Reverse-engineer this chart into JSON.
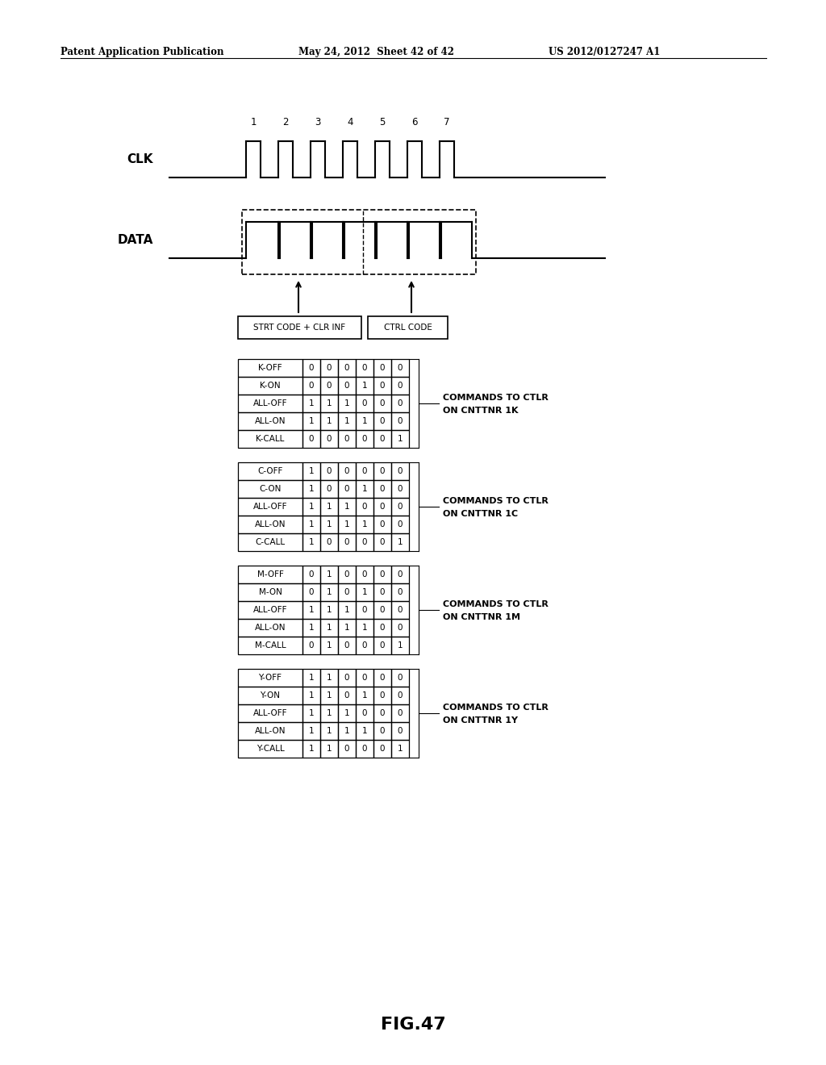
{
  "header_left": "Patent Application Publication",
  "header_mid": "May 24, 2012  Sheet 42 of 42",
  "header_right": "US 2012/0127247 A1",
  "clk_label": "CLK",
  "data_label": "DATA",
  "clk_numbers": [
    "1",
    "2",
    "3",
    "4",
    "5",
    "6",
    "7"
  ],
  "box1_label": "STRT CODE + CLR INF",
  "box2_label": "CTRL CODE",
  "tables": [
    {
      "rows": [
        {
          "name": "K-OFF",
          "bits": [
            0,
            0,
            0,
            0,
            0,
            0
          ]
        },
        {
          "name": "K-ON",
          "bits": [
            0,
            0,
            0,
            1,
            0,
            0
          ]
        },
        {
          "name": "ALL-OFF",
          "bits": [
            1,
            1,
            1,
            0,
            0,
            0
          ]
        },
        {
          "name": "ALL-ON",
          "bits": [
            1,
            1,
            1,
            1,
            0,
            0
          ]
        },
        {
          "name": "K-CALL",
          "bits": [
            0,
            0,
            0,
            0,
            0,
            1
          ]
        }
      ],
      "label": "COMMANDS TO CTLR\nON CNTTNR 1K"
    },
    {
      "rows": [
        {
          "name": "C-OFF",
          "bits": [
            1,
            0,
            0,
            0,
            0,
            0
          ]
        },
        {
          "name": "C-ON",
          "bits": [
            1,
            0,
            0,
            1,
            0,
            0
          ]
        },
        {
          "name": "ALL-OFF",
          "bits": [
            1,
            1,
            1,
            0,
            0,
            0
          ]
        },
        {
          "name": "ALL-ON",
          "bits": [
            1,
            1,
            1,
            1,
            0,
            0
          ]
        },
        {
          "name": "C-CALL",
          "bits": [
            1,
            0,
            0,
            0,
            0,
            1
          ]
        }
      ],
      "label": "COMMANDS TO CTLR\nON CNTTNR 1C"
    },
    {
      "rows": [
        {
          "name": "M-OFF",
          "bits": [
            0,
            1,
            0,
            0,
            0,
            0
          ]
        },
        {
          "name": "M-ON",
          "bits": [
            0,
            1,
            0,
            1,
            0,
            0
          ]
        },
        {
          "name": "ALL-OFF",
          "bits": [
            1,
            1,
            1,
            0,
            0,
            0
          ]
        },
        {
          "name": "ALL-ON",
          "bits": [
            1,
            1,
            1,
            1,
            0,
            0
          ]
        },
        {
          "name": "M-CALL",
          "bits": [
            0,
            1,
            0,
            0,
            0,
            1
          ]
        }
      ],
      "label": "COMMANDS TO CTLR\nON CNTTNR 1M"
    },
    {
      "rows": [
        {
          "name": "Y-OFF",
          "bits": [
            1,
            1,
            0,
            0,
            0,
            0
          ]
        },
        {
          "name": "Y-ON",
          "bits": [
            1,
            1,
            0,
            1,
            0,
            0
          ]
        },
        {
          "name": "ALL-OFF",
          "bits": [
            1,
            1,
            1,
            0,
            0,
            0
          ]
        },
        {
          "name": "ALL-ON",
          "bits": [
            1,
            1,
            1,
            1,
            0,
            0
          ]
        },
        {
          "name": "Y-CALL",
          "bits": [
            1,
            1,
            0,
            0,
            0,
            1
          ]
        }
      ],
      "label": "COMMANDS TO CTLR\nON CNTTNR 1Y"
    }
  ],
  "fig_label": "FIG.47",
  "bg_color": "#ffffff"
}
